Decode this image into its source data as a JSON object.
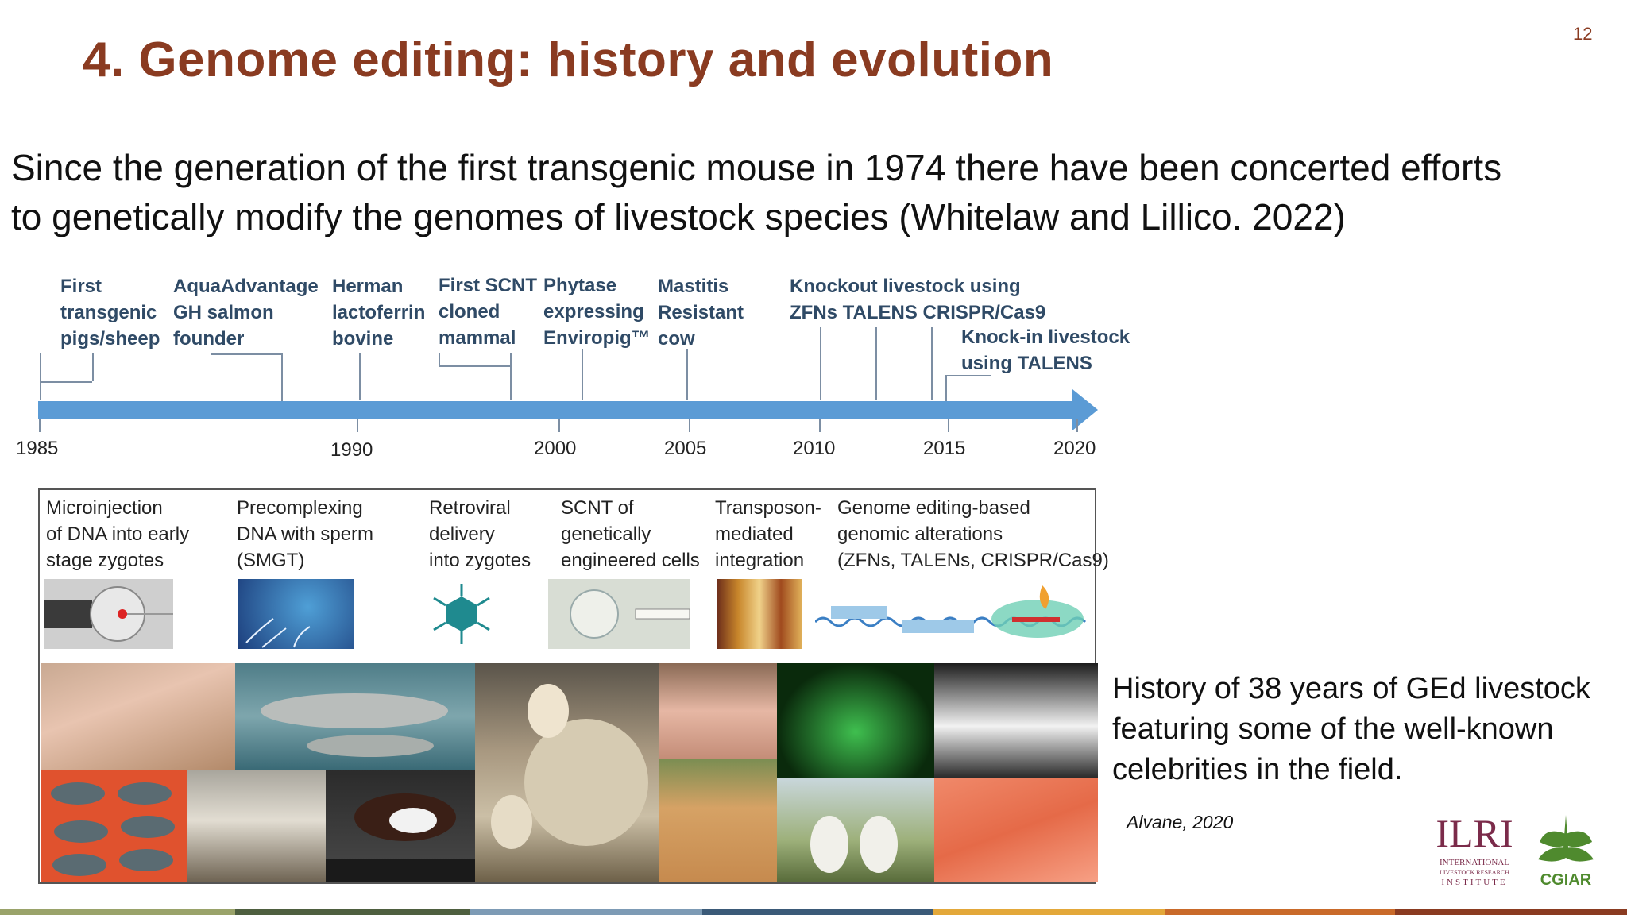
{
  "slide": {
    "page_number": "12",
    "title": "4. Genome editing: history and evolution",
    "intro_lines": [
      "Since the generation of the first transgenic mouse in 1974 there have been concerted efforts",
      "to genetically modify the genomes of livestock species (Whitelaw and Lillico. 2022)"
    ]
  },
  "timeline": {
    "events": [
      {
        "lines": [
          "First",
          "transgenic",
          "pigs/sheep"
        ]
      },
      {
        "lines": [
          "AquaAdvantage",
          "GH salmon",
          "founder"
        ]
      },
      {
        "lines": [
          "Herman",
          "lactoferrin",
          "bovine"
        ]
      },
      {
        "lines": [
          "First SCNT",
          "cloned",
          "mammal"
        ]
      },
      {
        "lines": [
          "Phytase",
          "expressing",
          "Enviropig™"
        ]
      },
      {
        "lines": [
          "Mastitis",
          "Resistant",
          "cow"
        ]
      },
      {
        "lines": [
          "Knockout livestock using",
          "ZFNs  TALENS  CRISPR/Cas9"
        ]
      },
      {
        "lines": [
          "Knock-in livestock",
          "using TALENS"
        ]
      }
    ],
    "years": [
      "1985",
      "1990",
      "2000",
      "2005",
      "2010",
      "2015",
      "2020"
    ],
    "arrow_color": "#5b9bd5"
  },
  "methods": [
    {
      "lines": [
        "Microinjection",
        "of DNA into early",
        "stage zygotes"
      ],
      "icon": "microinjection-image"
    },
    {
      "lines": [
        "Precomplexing",
        "DNA with sperm",
        " (SMGT)"
      ],
      "icon": "sperm-image"
    },
    {
      "lines": [
        "Retroviral",
        "delivery",
        "into zygotes"
      ],
      "icon": "virus-icon"
    },
    {
      "lines": [
        "SCNT of",
        " genetically",
        "engineered cells"
      ],
      "icon": "scnt-image"
    },
    {
      "lines": [
        "Transposon-",
        " mediated",
        "integration"
      ],
      "icon": "corn-image"
    },
    {
      "lines": [
        "Genome editing-based",
        "genomic alterations",
        "(ZFNs, TALENs, CRISPR/Cas9)"
      ],
      "icon": "dna-editing-diagram"
    }
  ],
  "animal_photos": [
    "sow-piglets-photo",
    "salmon-photo",
    "dolly-sheep-photo",
    "pig-photo",
    "glowing-chicks-photo",
    "cow-face-photo",
    "tilapia-photo",
    "goats-photo",
    "bull-photo",
    "calf-photo",
    "cattle-rear-photo",
    "salmon-fillet-photo"
  ],
  "caption": {
    "lines": [
      "History of 38 years of GEd livestock",
      "featuring some of the well-known",
      "celebrities in the field."
    ],
    "citation": "Alvane, 2020"
  },
  "logos": {
    "ilri": {
      "name": "ILRI",
      "sub": [
        "INTERNATIONAL",
        "LIVESTOCK RESEARCH",
        "INSTITUTE"
      ],
      "color": "#7b2b4a"
    },
    "cgiar": {
      "name": "CGIAR",
      "color": "#4f8a2e"
    }
  },
  "colors": {
    "title": "#8a3b21",
    "timeline_text": "#2f4a66"
  },
  "footer_bar_colors": [
    "#9aa36a",
    "#4e5f3f",
    "#7d9bb5",
    "#3b5a78",
    "#e3a83a",
    "#c96a2a",
    "#8a3b21"
  ]
}
